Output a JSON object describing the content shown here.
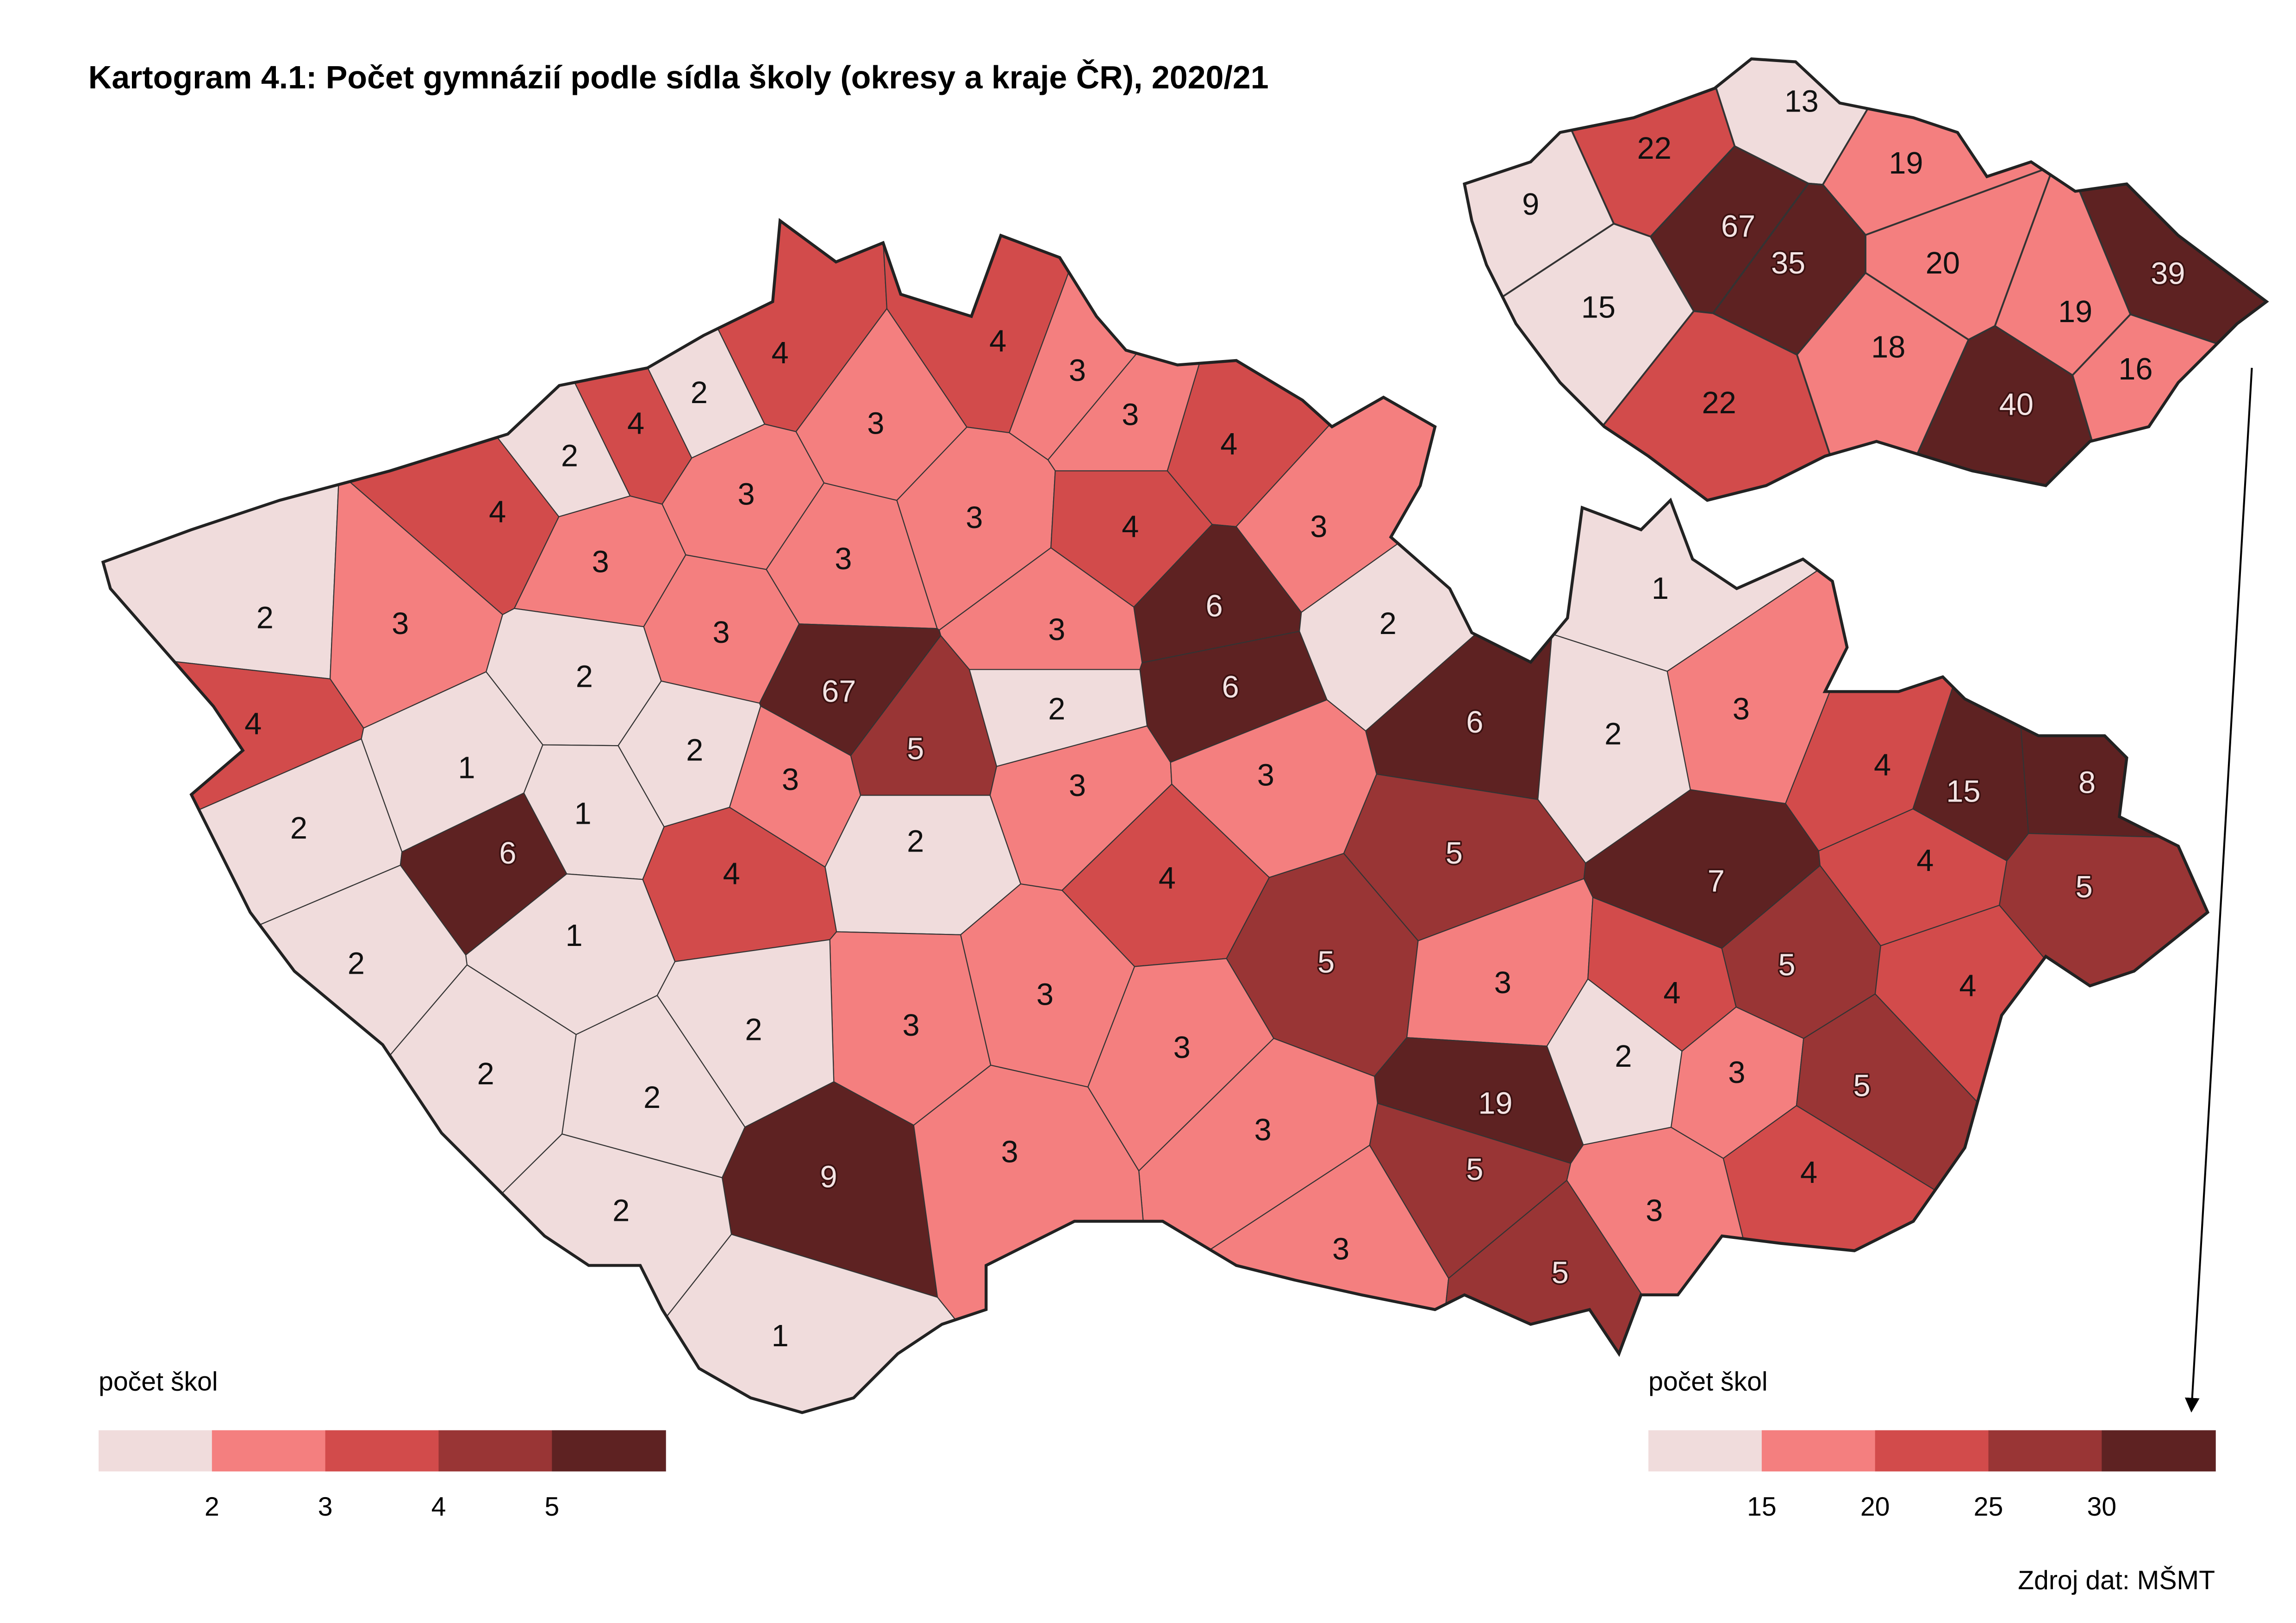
{
  "title": "Kartogram 4.1: Počet gymnázií podle sídla školy (okresy a kraje ČR), 2020/21",
  "maps": [
    {
      "legend": {
        "title": "počet škol",
        "ticks": [
          2,
          3,
          4,
          5
        ],
        "colors": [
          "#f0dcdc",
          "#f47f7f",
          "#d24b4b",
          "#993535",
          "#5e2222"
        ]
      },
      "areas": [
        4,
        2,
        4,
        2,
        4,
        3,
        4,
        3,
        3,
        4,
        3,
        3,
        4,
        3,
        3,
        3,
        2,
        3,
        3,
        3,
        6,
        2,
        1,
        4,
        2,
        67,
        6,
        2,
        6,
        2,
        3,
        1,
        2,
        5,
        3,
        3,
        3,
        4,
        15,
        8,
        2,
        1,
        6,
        2,
        5,
        7,
        4,
        5,
        4,
        4,
        1,
        2,
        5,
        3,
        4,
        5,
        4,
        3,
        3,
        2,
        3,
        2,
        3,
        5,
        2,
        2,
        19,
        3,
        9,
        3,
        5,
        4,
        2,
        3,
        3,
        5,
        1
      ]
    },
    {
      "legend": {
        "title": "počet škol",
        "ticks": [
          15,
          20,
          25,
          30
        ],
        "colors": [
          "#f0dcdc",
          "#f47f7f",
          "#d24b4b",
          "#993535",
          "#5e2222"
        ]
      },
      "areas": [
        13,
        22,
        19,
        9,
        67,
        35,
        20,
        39,
        15,
        19,
        18,
        16,
        22,
        40
      ]
    }
  ],
  "source": "Zdroj dat: MŠMT"
}
